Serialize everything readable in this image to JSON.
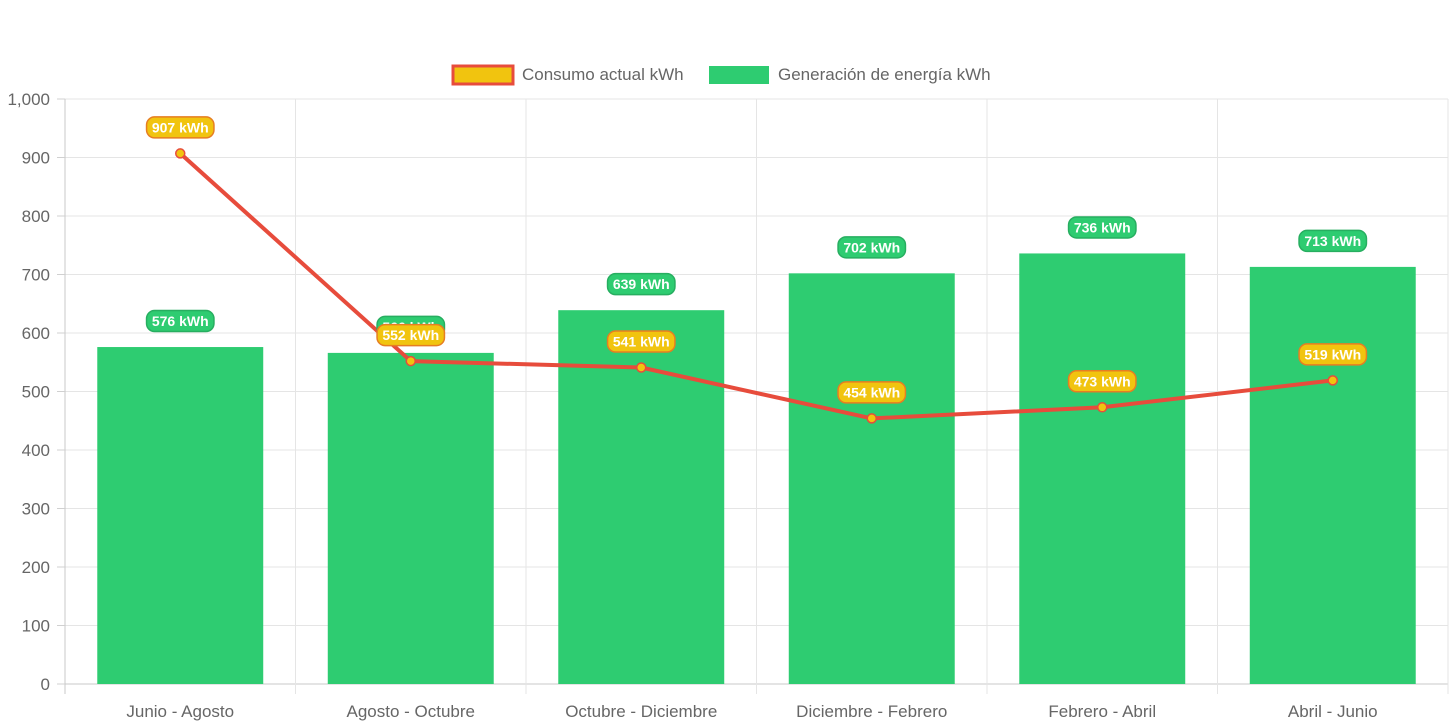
{
  "chart_data": {
    "type": "bar",
    "categories": [
      "Junio - Agosto",
      "Agosto - Octubre",
      "Octubre - Diciembre",
      "Diciembre - Febrero",
      "Febrero - Abril",
      "Abril - Junio"
    ],
    "series": [
      {
        "name": "Consumo actual kWh",
        "type": "line",
        "values": [
          907,
          552,
          541,
          454,
          473,
          519
        ],
        "labels": [
          "907 kWh",
          "552 kWh",
          "541 kWh",
          "454 kWh",
          "473 kWh",
          "519 kWh"
        ],
        "color": "#e74c3c",
        "fill": "#f1c40f"
      },
      {
        "name": "Generación de energía kWh",
        "type": "bar",
        "values": [
          576,
          566,
          639,
          702,
          736,
          713
        ],
        "labels": [
          "576 kWh",
          "566 kWh",
          "639 kWh",
          "702 kWh",
          "736 kWh",
          "713 kWh"
        ],
        "color": "#2ecc71"
      }
    ],
    "ylim": [
      0,
      1000
    ],
    "yticks": [
      "0",
      "100",
      "200",
      "300",
      "400",
      "500",
      "600",
      "700",
      "800",
      "900",
      "1,000"
    ],
    "grid": true,
    "legend": "top-center"
  }
}
